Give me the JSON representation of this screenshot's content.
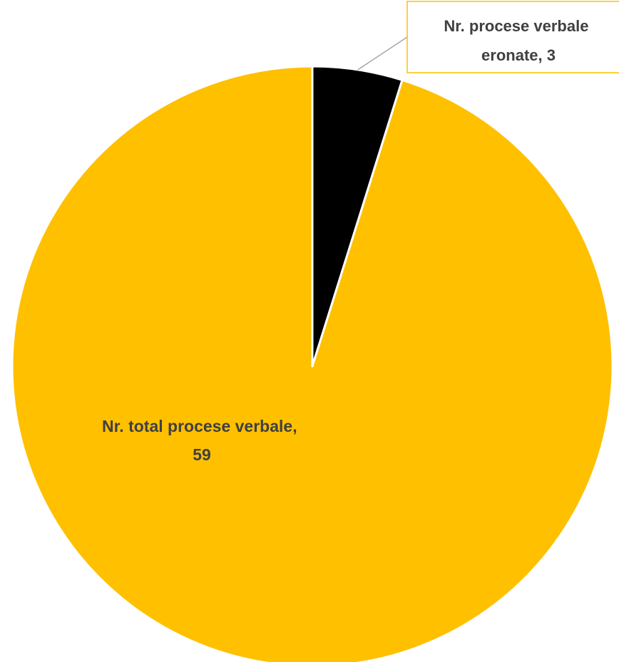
{
  "chart_data": {
    "type": "pie",
    "title": "",
    "slices": [
      {
        "label": "Nr. procese verbale eronate",
        "value": 3,
        "color": "#000000",
        "data_label_lines": [
          "Nr. procese verbale",
          "eronate, 3"
        ]
      },
      {
        "label": "Nr. total procese verbale",
        "value": 59,
        "color": "#FFC000",
        "data_label_lines": [
          "Nr. total procese verbale,",
          "59"
        ]
      }
    ],
    "legend": "none",
    "callout_border_color": "#FFC000",
    "leader_line_color": "#A6A6A6",
    "slice_border_color": "#FFFFFF"
  }
}
